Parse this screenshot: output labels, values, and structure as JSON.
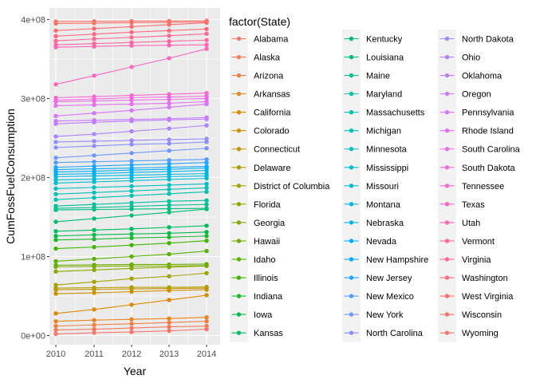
{
  "chart_data": {
    "type": "line",
    "xlabel": "Year",
    "ylabel": "CumFossFuelConsumption",
    "x": [
      2010,
      2011,
      2012,
      2013,
      2014
    ],
    "xlim": [
      2010,
      2014
    ],
    "ylim": [
      0,
      400000000
    ],
    "y_ticks": [
      0,
      100000000,
      200000000,
      300000000,
      400000000
    ],
    "y_tick_labels": [
      "0e+00",
      "1e+08",
      "2e+08",
      "3e+08",
      "4e+08"
    ],
    "x_tick_labels": [
      "2010",
      "2011",
      "2012",
      "2013",
      "2014"
    ],
    "grid": true,
    "panel_background": "#EBEBEB",
    "legend": {
      "title": "factor(State)",
      "placement": "right",
      "columns": 3
    },
    "series": [
      {
        "name": "Alabama",
        "color": "#F8766D",
        "values": [
          2000000,
          3500000,
          4500000,
          6000000,
          8000000
        ]
      },
      {
        "name": "Alaska",
        "color": "#F57A5C",
        "values": [
          7000000,
          8000000,
          9500000,
          11000000,
          12000000
        ]
      },
      {
        "name": "Arizona",
        "color": "#EF7F45",
        "values": [
          12000000,
          13500000,
          15000000,
          16500000,
          18000000
        ]
      },
      {
        "name": "Arkansas",
        "color": "#E7851E",
        "values": [
          18000000,
          19500000,
          20500000,
          21500000,
          23000000
        ]
      },
      {
        "name": "California",
        "color": "#DC8A00",
        "values": [
          28000000,
          33000000,
          39000000,
          45000000,
          51000000
        ]
      },
      {
        "name": "Colorado",
        "color": "#CF9100",
        "values": [
          53000000,
          54000000,
          55500000,
          57000000,
          58000000
        ]
      },
      {
        "name": "Connecticut",
        "color": "#C29600",
        "values": [
          58000000,
          58500000,
          59000000,
          59500000,
          60000000
        ]
      },
      {
        "name": "Delaware",
        "color": "#B39C00",
        "values": [
          60000000,
          60500000,
          61000000,
          61000000,
          61500000
        ]
      },
      {
        "name": "District of Columbia",
        "color": "#A3A200",
        "values": [
          64000000,
          68000000,
          72000000,
          75000000,
          79000000
        ]
      },
      {
        "name": "Florida",
        "color": "#92A600",
        "values": [
          81000000,
          83000000,
          85000000,
          86500000,
          88000000
        ]
      },
      {
        "name": "Georgia",
        "color": "#7FAA00",
        "values": [
          87000000,
          87500000,
          88000000,
          88000000,
          88500000
        ]
      },
      {
        "name": "Hawaii",
        "color": "#6BAE00",
        "values": [
          89000000,
          89500000,
          90000000,
          90000000,
          90500000
        ]
      },
      {
        "name": "Idaho",
        "color": "#58B200",
        "values": [
          94000000,
          97000000,
          100000000,
          103000000,
          107000000
        ]
      },
      {
        "name": "Illinois",
        "color": "#40B500",
        "values": [
          110000000,
          112000000,
          114500000,
          117000000,
          120000000
        ]
      },
      {
        "name": "Indiana",
        "color": "#1DB82E",
        "values": [
          121000000,
          122000000,
          123500000,
          124500000,
          126000000
        ]
      },
      {
        "name": "Iowa",
        "color": "#00BA4A",
        "values": [
          126000000,
          127500000,
          128500000,
          129500000,
          131000000
        ]
      },
      {
        "name": "Kansas",
        "color": "#00BB5F",
        "values": [
          132000000,
          133500000,
          135000000,
          137000000,
          139000000
        ]
      },
      {
        "name": "Kentucky",
        "color": "#00BD72",
        "values": [
          144000000,
          148000000,
          152000000,
          156000000,
          160000000
        ]
      },
      {
        "name": "Louisiana",
        "color": "#00BE82",
        "values": [
          159000000,
          159500000,
          160000000,
          160500000,
          161000000
        ]
      },
      {
        "name": "Maine",
        "color": "#00BF92",
        "values": [
          161000000,
          162000000,
          163500000,
          165000000,
          166000000
        ]
      },
      {
        "name": "Maryland",
        "color": "#00C0A0",
        "values": [
          164000000,
          166000000,
          168000000,
          170000000,
          171000000
        ]
      },
      {
        "name": "Massachusetts",
        "color": "#00C1AD",
        "values": [
          172000000,
          174500000,
          177000000,
          179500000,
          182000000
        ]
      },
      {
        "name": "Michigan",
        "color": "#00C0B9",
        "values": [
          179000000,
          181000000,
          183000000,
          185000000,
          187000000
        ]
      },
      {
        "name": "Minnesota",
        "color": "#00BFC4",
        "values": [
          186000000,
          187500000,
          189000000,
          190500000,
          192000000
        ]
      },
      {
        "name": "Mississippi",
        "color": "#00BDCF",
        "values": [
          193000000,
          194500000,
          196000000,
          197500000,
          199000000
        ]
      },
      {
        "name": "Missouri",
        "color": "#00BBD9",
        "values": [
          197000000,
          198000000,
          199500000,
          201000000,
          202000000
        ]
      },
      {
        "name": "Montana",
        "color": "#00B8E3",
        "values": [
          201000000,
          202000000,
          203000000,
          204000000,
          205000000
        ]
      },
      {
        "name": "Nebraska",
        "color": "#00B4EC",
        "values": [
          204000000,
          205000000,
          206500000,
          207500000,
          209000000
        ]
      },
      {
        "name": "Nevada",
        "color": "#00B0F6",
        "values": [
          207000000,
          208000000,
          209500000,
          210500000,
          212000000
        ]
      },
      {
        "name": "New Hampshire",
        "color": "#00ABFD",
        "values": [
          210000000,
          211000000,
          212000000,
          213000000,
          214000000
        ]
      },
      {
        "name": "New Jersey",
        "color": "#1EA5FF",
        "values": [
          213000000,
          214500000,
          216000000,
          217500000,
          219000000
        ]
      },
      {
        "name": "New Mexico",
        "color": "#529EFF",
        "values": [
          219000000,
          220000000,
          221000000,
          222000000,
          223000000
        ]
      },
      {
        "name": "New York",
        "color": "#7097FF",
        "values": [
          225000000,
          228000000,
          231000000,
          234000000,
          237000000
        ]
      },
      {
        "name": "North Carolina",
        "color": "#8890FF",
        "values": [
          238000000,
          240000000,
          242000000,
          243000000,
          245000000
        ]
      },
      {
        "name": "North Dakota",
        "color": "#9B8AFF",
        "values": [
          245000000,
          246000000,
          247000000,
          248000000,
          249000000
        ]
      },
      {
        "name": "Ohio",
        "color": "#AC84FF",
        "values": [
          252000000,
          255000000,
          258500000,
          262000000,
          266000000
        ]
      },
      {
        "name": "Oklahoma",
        "color": "#BC7EFF",
        "values": [
          268000000,
          270000000,
          271500000,
          273000000,
          274000000
        ]
      },
      {
        "name": "Oregon",
        "color": "#CA79FF",
        "values": [
          271500000,
          272500000,
          273500000,
          274500000,
          276000000
        ]
      },
      {
        "name": "Pennsylvania",
        "color": "#D675FE",
        "values": [
          278000000,
          281500000,
          285000000,
          289000000,
          293000000
        ]
      },
      {
        "name": "Rhode Island",
        "color": "#E170F4",
        "values": [
          291000000,
          292000000,
          293000000,
          294000000,
          296000000
        ]
      },
      {
        "name": "South Carolina",
        "color": "#EA6CE9",
        "values": [
          296000000,
          297000000,
          298000000,
          299000000,
          300000000
        ]
      },
      {
        "name": "South Dakota",
        "color": "#F26ADD",
        "values": [
          298000000,
          299500000,
          301000000,
          302000000,
          303000000
        ]
      },
      {
        "name": "Tennessee",
        "color": "#F868D0",
        "values": [
          301000000,
          302500000,
          304000000,
          305500000,
          307000000
        ]
      },
      {
        "name": "Texas",
        "color": "#FC66C1",
        "values": [
          318000000,
          329000000,
          340000000,
          351000000,
          363000000
        ]
      },
      {
        "name": "Utah",
        "color": "#FF65B2",
        "values": [
          365000000,
          366000000,
          367000000,
          367500000,
          368000000
        ]
      },
      {
        "name": "Vermont",
        "color": "#FF66A3",
        "values": [
          368000000,
          369500000,
          371000000,
          372500000,
          374000000
        ]
      },
      {
        "name": "Virginia",
        "color": "#FF6893",
        "values": [
          373000000,
          375500000,
          377500000,
          379500000,
          382000000
        ]
      },
      {
        "name": "Washington",
        "color": "#FF6A83",
        "values": [
          379000000,
          381500000,
          384000000,
          386000000,
          388000000
        ]
      },
      {
        "name": "West Virginia",
        "color": "#FC6E74",
        "values": [
          386000000,
          388500000,
          391000000,
          393500000,
          396000000
        ]
      },
      {
        "name": "Wisconsin",
        "color": "#FA7265",
        "values": [
          395000000,
          395500000,
          396000000,
          396500000,
          397000000
        ]
      },
      {
        "name": "Wyoming",
        "color": "#F8766D",
        "values": [
          397500000,
          397800000,
          398000000,
          398200000,
          398500000
        ]
      }
    ]
  }
}
